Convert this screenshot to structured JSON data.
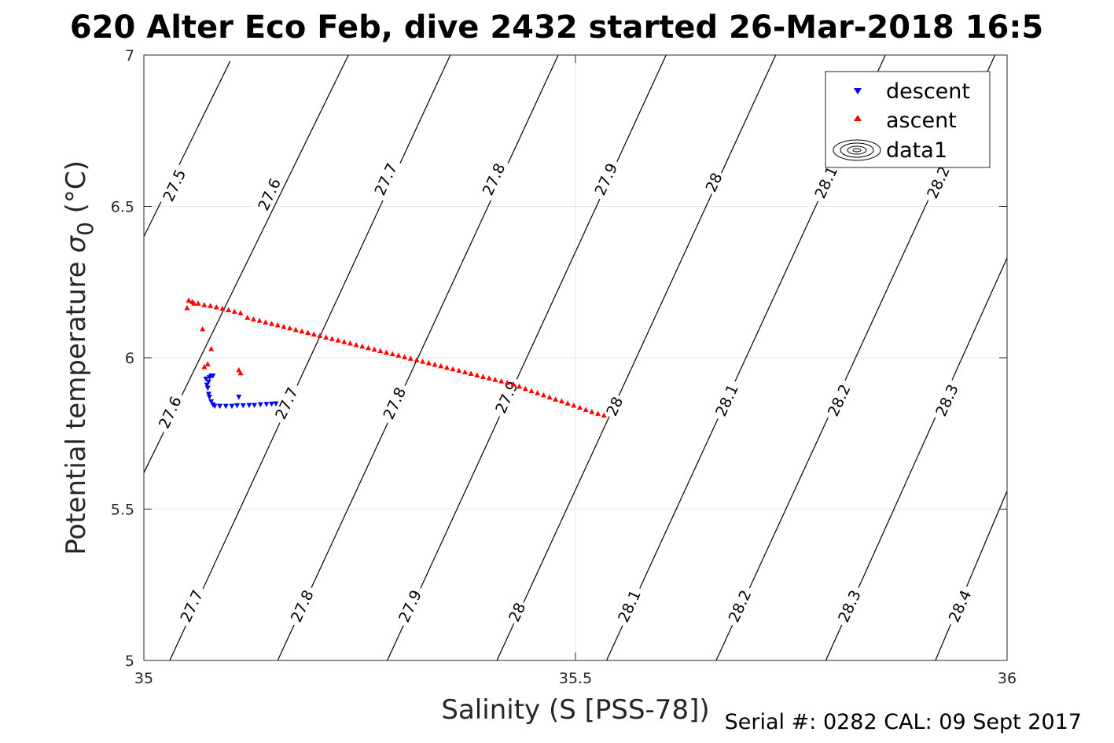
{
  "chart_data": {
    "type": "scatter",
    "title": "620 Alter Eco Feb, dive 2432 started 26-Mar-2018 16:5",
    "xlabel": "Salinity (S [PSS-78])",
    "ylabel_main": "Potential temperature ",
    "ylabel_sigma": "σ",
    "ylabel_sub": "0",
    "ylabel_unit": " (°C)",
    "xlim": [
      35,
      36
    ],
    "ylim": [
      5,
      7
    ],
    "x_ticks": [
      35,
      35.5,
      36
    ],
    "x_tick_labels": [
      "35",
      "35.5",
      "36"
    ],
    "y_ticks": [
      5,
      5.5,
      6,
      6.5,
      7
    ],
    "y_tick_labels": [
      "5",
      "5.5",
      "6",
      "6.5",
      "7"
    ],
    "grid": true,
    "legend_position": "top-right",
    "legend": [
      "descent",
      "ascent",
      "data1"
    ],
    "footer": "Serial #: 0282  CAL: 09 Sept 2017",
    "colors": {
      "descent": "#0000ff",
      "ascent": "#ff0000",
      "contour": "#000000",
      "grid": "#e6e6e6",
      "axis": "#262626"
    },
    "contours": [
      {
        "level": "27.5",
        "points": [
          [
            35.0,
            6.4
          ],
          [
            35.1,
            6.98
          ]
        ]
      },
      {
        "level": "27.6",
        "points": [
          [
            35.0,
            5.62
          ],
          [
            35.237,
            7.0
          ]
        ]
      },
      {
        "level": "27.7",
        "points": [
          [
            35.03,
            5.0
          ],
          [
            35.355,
            7.0
          ]
        ]
      },
      {
        "level": "27.8",
        "points": [
          [
            35.155,
            5.0
          ],
          [
            35.48,
            7.0
          ]
        ]
      },
      {
        "level": "27.9",
        "points": [
          [
            35.282,
            5.0
          ],
          [
            35.605,
            7.0
          ]
        ]
      },
      {
        "level": "28",
        "points": [
          [
            35.409,
            5.0
          ],
          [
            35.732,
            7.0
          ]
        ]
      },
      {
        "level": "28.1",
        "points": [
          [
            35.536,
            5.0
          ],
          [
            35.859,
            7.0
          ]
        ]
      },
      {
        "level": "28.2",
        "points": [
          [
            35.663,
            5.0
          ],
          [
            35.986,
            7.0
          ]
        ]
      },
      {
        "level": "28.3",
        "points": [
          [
            35.79,
            5.0
          ],
          [
            36.0,
            6.33
          ]
        ]
      },
      {
        "level": "28.4",
        "points": [
          [
            35.917,
            5.0
          ],
          [
            36.0,
            5.56
          ]
        ]
      }
    ],
    "contour_labels": [
      {
        "text": "27.5",
        "x": 35.035,
        "y": 6.57
      },
      {
        "text": "27.6",
        "x": 35.145,
        "y": 6.54
      },
      {
        "text": "27.7",
        "x": 35.28,
        "y": 6.59
      },
      {
        "text": "27.8",
        "x": 35.405,
        "y": 6.59
      },
      {
        "text": "27.9",
        "x": 35.535,
        "y": 6.59
      },
      {
        "text": "28",
        "x": 35.66,
        "y": 6.58
      },
      {
        "text": "28.1",
        "x": 35.79,
        "y": 6.58
      },
      {
        "text": "28.2",
        "x": 35.92,
        "y": 6.58
      },
      {
        "text": "27.6",
        "x": 35.03,
        "y": 5.82
      },
      {
        "text": "27.7",
        "x": 35.165,
        "y": 5.85
      },
      {
        "text": "27.8",
        "x": 35.29,
        "y": 5.85
      },
      {
        "text": "27.9",
        "x": 35.42,
        "y": 5.87
      },
      {
        "text": "28",
        "x": 35.545,
        "y": 5.84
      },
      {
        "text": "28.1",
        "x": 35.675,
        "y": 5.86
      },
      {
        "text": "28.2",
        "x": 35.805,
        "y": 5.86
      },
      {
        "text": "28.3",
        "x": 35.93,
        "y": 5.86
      },
      {
        "text": "27.7",
        "x": 35.055,
        "y": 5.18
      },
      {
        "text": "27.8",
        "x": 35.183,
        "y": 5.18
      },
      {
        "text": "27.9",
        "x": 35.308,
        "y": 5.18
      },
      {
        "text": "28",
        "x": 35.432,
        "y": 5.16
      },
      {
        "text": "28.1",
        "x": 35.562,
        "y": 5.18
      },
      {
        "text": "28.2",
        "x": 35.69,
        "y": 5.18
      },
      {
        "text": "28.3",
        "x": 35.817,
        "y": 5.18
      },
      {
        "text": "28.4",
        "x": 35.945,
        "y": 5.18
      }
    ],
    "series": [
      {
        "name": "descent",
        "marker": "triangle-down",
        "points": [
          [
            35.072,
            5.93
          ],
          [
            35.073,
            5.91
          ],
          [
            35.075,
            5.92
          ],
          [
            35.076,
            5.935
          ],
          [
            35.078,
            5.94
          ],
          [
            35.08,
            5.94
          ],
          [
            35.074,
            5.9
          ],
          [
            35.075,
            5.88
          ],
          [
            35.076,
            5.87
          ],
          [
            35.078,
            5.855
          ],
          [
            35.08,
            5.845
          ],
          [
            35.082,
            5.84
          ],
          [
            35.088,
            5.84
          ],
          [
            35.095,
            5.84
          ],
          [
            35.102,
            5.84
          ],
          [
            35.108,
            5.842
          ],
          [
            35.115,
            5.842
          ],
          [
            35.122,
            5.843
          ],
          [
            35.128,
            5.843
          ],
          [
            35.135,
            5.845
          ],
          [
            35.142,
            5.846
          ],
          [
            35.148,
            5.847
          ],
          [
            35.153,
            5.848
          ],
          [
            35.11,
            5.87
          ]
        ]
      },
      {
        "name": "ascent",
        "marker": "triangle-up",
        "points": [
          [
            35.052,
            6.19
          ],
          [
            35.05,
            6.165
          ],
          [
            35.056,
            6.185
          ],
          [
            35.058,
            6.18
          ],
          [
            35.063,
            6.18
          ],
          [
            35.07,
            6.175
          ],
          [
            35.077,
            6.172
          ],
          [
            35.084,
            6.168
          ],
          [
            35.091,
            6.163
          ],
          [
            35.098,
            6.158
          ],
          [
            35.105,
            6.153
          ],
          [
            35.112,
            6.148
          ],
          [
            35.12,
            6.133
          ],
          [
            35.127,
            6.128
          ],
          [
            35.134,
            6.123
          ],
          [
            35.141,
            6.118
          ],
          [
            35.148,
            6.113
          ],
          [
            35.155,
            6.108
          ],
          [
            35.162,
            6.103
          ],
          [
            35.169,
            6.098
          ],
          [
            35.176,
            6.093
          ],
          [
            35.183,
            6.088
          ],
          [
            35.19,
            6.083
          ],
          [
            35.197,
            6.078
          ],
          [
            35.204,
            6.073
          ],
          [
            35.211,
            6.068
          ],
          [
            35.218,
            6.063
          ],
          [
            35.225,
            6.058
          ],
          [
            35.232,
            6.053
          ],
          [
            35.239,
            6.048
          ],
          [
            35.246,
            6.043
          ],
          [
            35.253,
            6.038
          ],
          [
            35.26,
            6.033
          ],
          [
            35.267,
            6.028
          ],
          [
            35.274,
            6.023
          ],
          [
            35.281,
            6.018
          ],
          [
            35.288,
            6.013
          ],
          [
            35.295,
            6.008
          ],
          [
            35.302,
            6.003
          ],
          [
            35.309,
            5.998
          ],
          [
            35.316,
            5.993
          ],
          [
            35.323,
            5.988
          ],
          [
            35.33,
            5.983
          ],
          [
            35.337,
            5.978
          ],
          [
            35.344,
            5.973
          ],
          [
            35.351,
            5.968
          ],
          [
            35.358,
            5.963
          ],
          [
            35.365,
            5.958
          ],
          [
            35.372,
            5.953
          ],
          [
            35.379,
            5.948
          ],
          [
            35.386,
            5.943
          ],
          [
            35.393,
            5.938
          ],
          [
            35.4,
            5.933
          ],
          [
            35.407,
            5.928
          ],
          [
            35.414,
            5.923
          ],
          [
            35.421,
            5.918
          ],
          [
            35.428,
            5.913
          ],
          [
            35.435,
            5.906
          ],
          [
            35.442,
            5.898
          ],
          [
            35.449,
            5.891
          ],
          [
            35.456,
            5.884
          ],
          [
            35.463,
            5.877
          ],
          [
            35.47,
            5.87
          ],
          [
            35.477,
            5.863
          ],
          [
            35.484,
            5.857
          ],
          [
            35.491,
            5.85
          ],
          [
            35.498,
            5.843
          ],
          [
            35.505,
            5.836
          ],
          [
            35.512,
            5.829
          ],
          [
            35.519,
            5.822
          ],
          [
            35.526,
            5.816
          ],
          [
            35.533,
            5.81
          ],
          [
            35.07,
            5.97
          ],
          [
            35.074,
            5.98
          ],
          [
            35.078,
            6.03
          ],
          [
            35.068,
            6.095
          ],
          [
            35.11,
            5.96
          ],
          [
            35.112,
            5.95
          ]
        ]
      }
    ]
  }
}
